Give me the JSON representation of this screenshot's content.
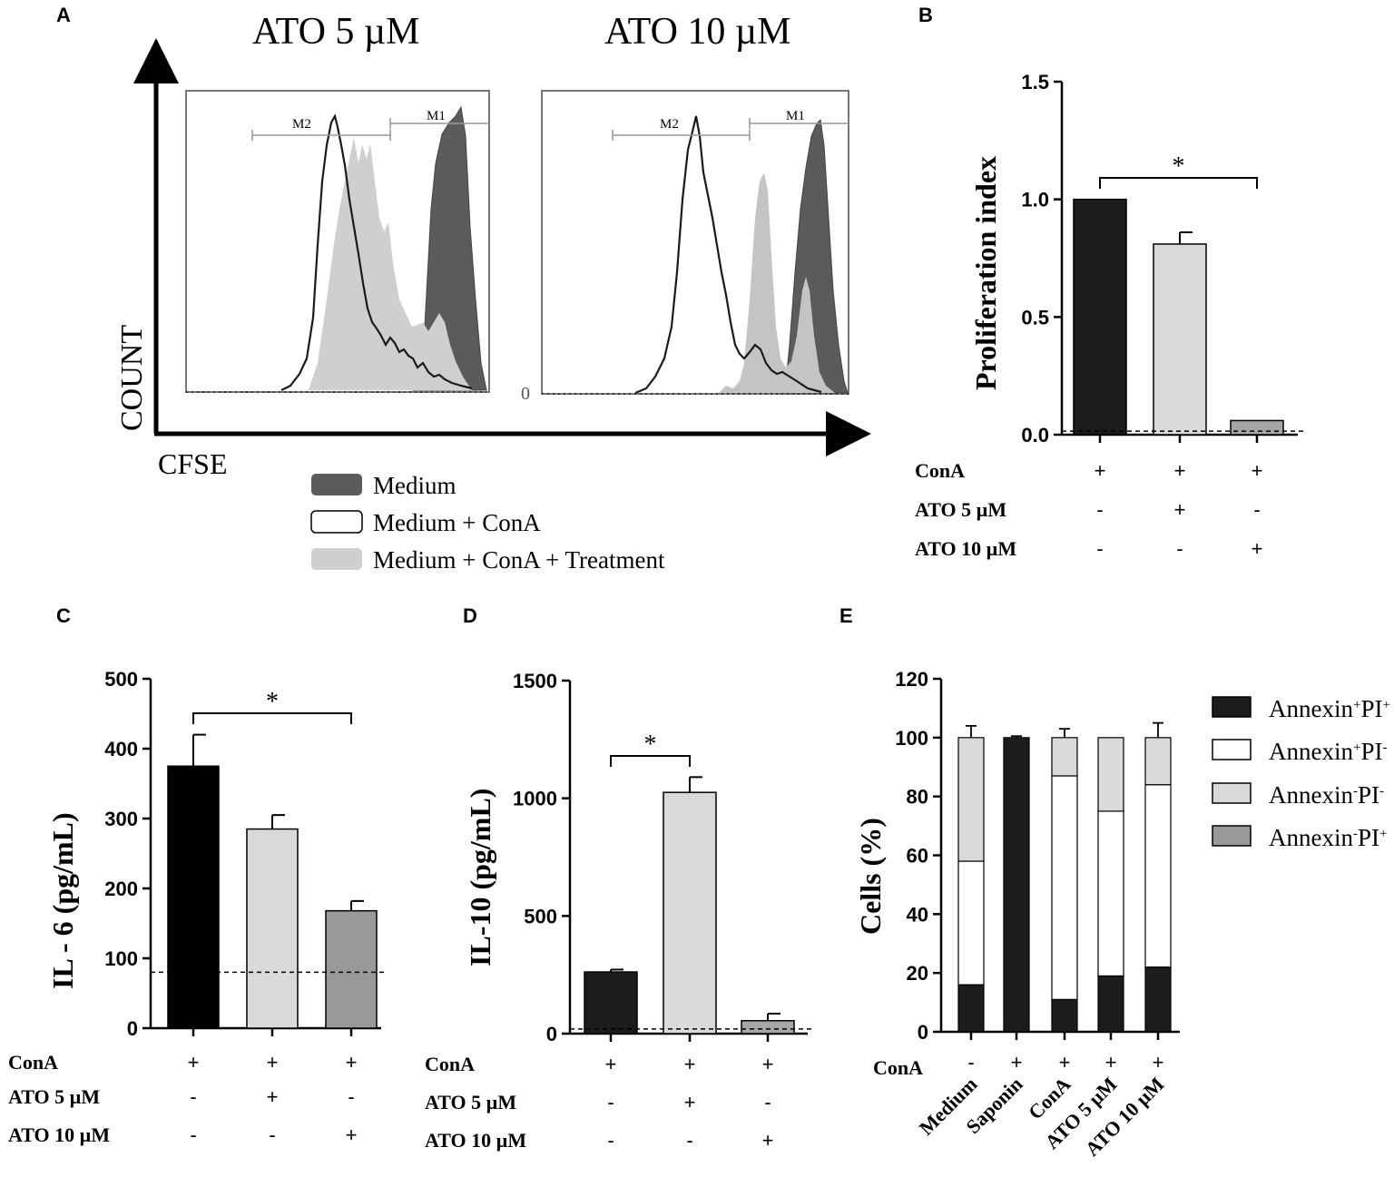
{
  "chart_data": [
    {
      "panel": "A",
      "type": "histogram",
      "titles": [
        "ATO 5 µM",
        "ATO 10 µM"
      ],
      "xlabel": "CFSE",
      "ylabel": "COUNT",
      "gates": [
        "M2",
        "M1"
      ],
      "zero_label": "0",
      "legend": [
        {
          "label": "Medium",
          "color": "#5b5b5b"
        },
        {
          "label": "Medium + ConA",
          "color": "#ffffff"
        },
        {
          "label": "Medium + ConA + Treatment",
          "color": "#cfcfcf"
        }
      ]
    },
    {
      "panel": "B",
      "type": "bar",
      "ylabel": "Proliferation index",
      "ylim": [
        0,
        1.5
      ],
      "yticks": [
        "0.0",
        "0.5",
        "1.0",
        "1.5"
      ],
      "values": [
        1.0,
        0.81,
        0.06
      ],
      "errors": [
        0.0,
        0.05,
        0.0
      ],
      "colors": [
        "#1c1c1c",
        "#d9d9d9",
        "#a6a6a6"
      ],
      "baseline": 0.015,
      "significance": "*",
      "rows": [
        {
          "label": "ConA",
          "signs": [
            "+",
            "+",
            "+"
          ]
        },
        {
          "label": "ATO 5 µM",
          "signs": [
            "-",
            "+",
            "-"
          ]
        },
        {
          "label": "ATO 10 µM",
          "signs": [
            "-",
            "-",
            "+"
          ]
        }
      ]
    },
    {
      "panel": "C",
      "type": "bar",
      "ylabel": "IL - 6 (pg/mL)",
      "ylim": [
        0,
        500
      ],
      "yticks": [
        "0",
        "100",
        "200",
        "300",
        "400",
        "500"
      ],
      "values": [
        375,
        285,
        168
      ],
      "errors": [
        45,
        20,
        14
      ],
      "colors": [
        "#000000",
        "#d9d9d9",
        "#999999"
      ],
      "baseline": 80,
      "significance": "*",
      "rows": [
        {
          "label": "ConA",
          "signs": [
            "+",
            "+",
            "+"
          ]
        },
        {
          "label": "ATO 5 µM",
          "signs": [
            "-",
            "+",
            "-"
          ]
        },
        {
          "label": "ATO 10 µM",
          "signs": [
            "-",
            "-",
            "+"
          ]
        }
      ]
    },
    {
      "panel": "D",
      "type": "bar",
      "ylabel": "IL-10 (pg/mL)",
      "ylim": [
        0,
        1500
      ],
      "yticks": [
        "0",
        "500",
        "1000",
        "1500"
      ],
      "values": [
        262,
        1025,
        55
      ],
      "errors": [
        10,
        65,
        30
      ],
      "colors": [
        "#1c1c1c",
        "#d9d9d9",
        "#a6a6a6"
      ],
      "baseline": 20,
      "significance": "*",
      "rows": [
        {
          "label": "ConA",
          "signs": [
            "+",
            "+",
            "+"
          ]
        },
        {
          "label": "ATO 5 µM",
          "signs": [
            "-",
            "+",
            "-"
          ]
        },
        {
          "label": "ATO 10 µM",
          "signs": [
            "-",
            "-",
            "+"
          ]
        }
      ]
    },
    {
      "panel": "E",
      "type": "stacked-bar",
      "ylabel": "Cells (%)",
      "ylim": [
        0,
        120
      ],
      "yticks": [
        "0",
        "20",
        "40",
        "60",
        "80",
        "100",
        "120"
      ],
      "categories": [
        "Medium",
        "Saponin",
        "ConA",
        "ATO 5 µM",
        "ATO 10 µM"
      ],
      "conA_label": "ConA",
      "conA_signs": [
        "-",
        "+",
        "+",
        "+",
        "+"
      ],
      "series": [
        {
          "name": "Annexin+PI+",
          "label_base": "Annexin",
          "sup1": "+",
          "mid": "PI",
          "sup2": "+",
          "color": "#1c1c1c",
          "values": [
            16,
            100,
            11,
            19,
            22
          ],
          "errors": [
            4,
            0.5,
            7,
            7,
            2
          ]
        },
        {
          "name": "Annexin+PI-",
          "label_base": "Annexin",
          "sup1": "+",
          "mid": "PI",
          "sup2": "-",
          "color": "#ffffff",
          "values": [
            42,
            0,
            76,
            56,
            62
          ],
          "errors": [
            2,
            0,
            7,
            7,
            5
          ]
        },
        {
          "name": "Annexin-PI-",
          "label_base": "Annexin",
          "sup1": "-",
          "mid": "PI",
          "sup2": "-",
          "color": "#d9d9d9",
          "values": [
            42,
            0,
            13,
            25,
            16
          ],
          "errors": [
            4,
            0,
            3,
            0,
            5
          ]
        },
        {
          "name": "Annexin-PI+",
          "label_base": "Annexin",
          "sup1": "-",
          "mid": "PI",
          "sup2": "+",
          "color": "#999999",
          "values": [
            0,
            0,
            0,
            0,
            0
          ],
          "errors": [
            0,
            0,
            0,
            0,
            0
          ]
        }
      ]
    }
  ]
}
